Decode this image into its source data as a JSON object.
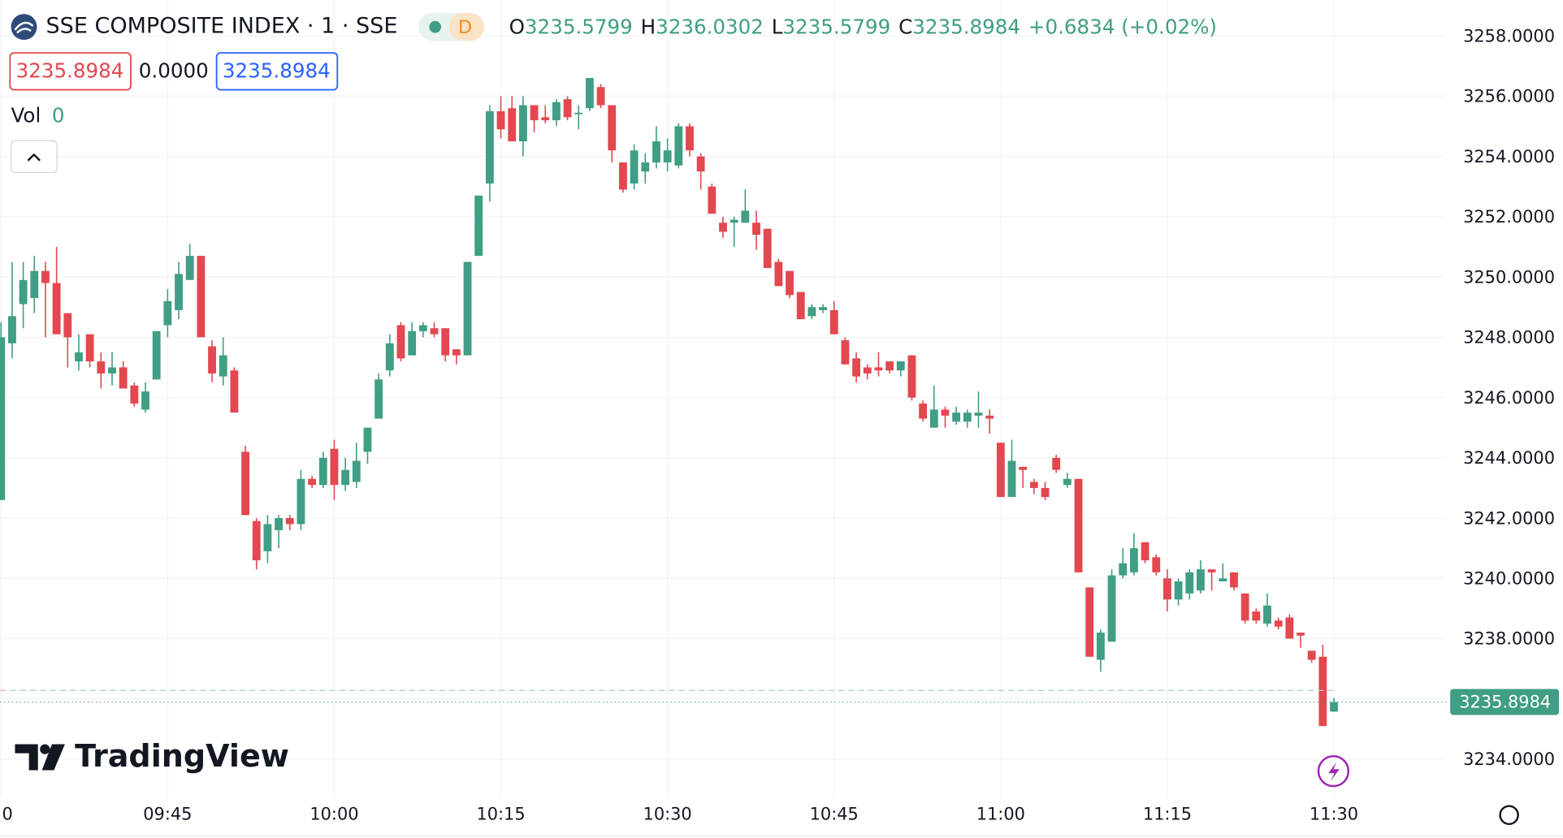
{
  "header": {
    "symbol": "SSE COMPOSITE INDEX · 1 · SSE",
    "badge": "D",
    "o_label": "O",
    "h_label": "H",
    "l_label": "L",
    "c_label": "C",
    "change": "+0.6834 (+0.02%)",
    "bid": "3235.8984",
    "spread": "0.0000",
    "ask": "3235.8984",
    "vol_label": "Vol",
    "vol_value": "0"
  },
  "logo": "TradingView",
  "chart_data": {
    "type": "candlestick",
    "up_color": "#3f9e84",
    "down_color": "#e3474f",
    "grid": true,
    "open": [
      3242.6,
      3247.8,
      3249.1,
      3249.3,
      3250.2,
      3249.8,
      3248.8,
      3247.2,
      3248.1,
      3247.2,
      3246.8,
      3247.0,
      3246.4,
      3245.6,
      3246.6,
      3248.4,
      3248.9,
      3249.9,
      3250.7,
      3247.7,
      3246.7,
      3246.9,
      3244.2,
      3241.9,
      3240.9,
      3241.6,
      3242.0,
      3241.8,
      3243.3,
      3243.1,
      3244.3,
      3243.1,
      3243.2,
      3244.2,
      3245.3,
      3246.9,
      3248.4,
      3247.4,
      3248.2,
      3248.3,
      3248.3,
      3247.6,
      3247.4,
      3250.7,
      3253.1,
      3255.5,
      3255.6,
      3254.5,
      3255.7,
      3255.3,
      3255.2,
      3255.9,
      3255.4,
      3255.6,
      3256.3,
      3255.7,
      3253.8,
      3253.1,
      3253.5,
      3253.8,
      3253.8,
      3253.7,
      3255.0,
      3254.0,
      3253.0,
      3251.8,
      3251.8,
      3251.8,
      3251.8,
      3251.6,
      3250.5,
      3250.2,
      3249.5,
      3248.7,
      3248.9,
      3248.9,
      3247.9,
      3247.3,
      3247.0,
      3247.0,
      3247.2,
      3246.9,
      3247.4,
      3245.8,
      3245.0,
      3245.6,
      3245.2,
      3245.2,
      3245.4,
      3245.4,
      3244.5,
      3242.7,
      3243.7,
      3243.2,
      3243.0,
      3244.0,
      3243.1,
      3243.3,
      3239.7,
      3237.3,
      3237.9,
      3240.1,
      3240.2,
      3241.2,
      3240.7,
      3240.0,
      3239.3,
      3239.5,
      3239.6,
      3240.3,
      3239.9,
      3240.2,
      3239.5,
      3238.9,
      3238.5,
      3238.6,
      3238.7,
      3238.2,
      3237.6,
      3237.4,
      3235.5799
    ],
    "high": [
      3248.5,
      3250.5,
      3250.5,
      3250.7,
      3250.5,
      3251.0,
      3248.8,
      3248.1,
      3248.1,
      3247.5,
      3247.5,
      3247.2,
      3246.5,
      3246.5,
      3248.2,
      3249.6,
      3250.5,
      3251.1,
      3250.7,
      3247.9,
      3248.0,
      3247.0,
      3244.4,
      3242.0,
      3242.1,
      3242.1,
      3242.1,
      3243.6,
      3243.4,
      3244.2,
      3244.6,
      3244.0,
      3244.5,
      3245.0,
      3246.8,
      3248.1,
      3248.5,
      3248.5,
      3248.5,
      3248.5,
      3248.3,
      3247.6,
      3250.5,
      3252.7,
      3255.7,
      3256.0,
      3256.0,
      3256.0,
      3255.7,
      3255.7,
      3255.9,
      3256.0,
      3255.7,
      3256.6,
      3256.4,
      3255.7,
      3253.8,
      3254.4,
      3254.1,
      3255.0,
      3254.6,
      3255.1,
      3255.1,
      3254.1,
      3253.1,
      3252.0,
      3252.0,
      3252.9,
      3252.2,
      3251.6,
      3250.6,
      3250.2,
      3249.5,
      3249.1,
      3249.1,
      3249.2,
      3248.0,
      3247.5,
      3247.1,
      3247.5,
      3247.2,
      3247.2,
      3247.4,
      3245.9,
      3246.4,
      3245.7,
      3245.7,
      3245.6,
      3246.2,
      3245.6,
      3244.5,
      3244.6,
      3243.7,
      3243.3,
      3243.2,
      3244.1,
      3243.5,
      3243.3,
      3239.7,
      3238.3,
      3240.3,
      3241.0,
      3241.5,
      3241.2,
      3240.8,
      3240.3,
      3240.0,
      3240.3,
      3240.6,
      3240.3,
      3240.5,
      3240.2,
      3239.5,
      3239.0,
      3239.5,
      3238.7,
      3238.8,
      3238.2,
      3237.6,
      3237.8,
      3236.0302
    ],
    "low": [
      3242.6,
      3247.3,
      3248.3,
      3248.8,
      3248.0,
      3248.1,
      3247.0,
      3246.9,
      3247.0,
      3246.3,
      3246.4,
      3246.3,
      3245.7,
      3245.5,
      3246.6,
      3248.0,
      3248.6,
      3249.9,
      3248.0,
      3246.5,
      3246.4,
      3245.5,
      3242.1,
      3240.3,
      3240.5,
      3241.0,
      3241.6,
      3241.6,
      3243.0,
      3243.0,
      3242.6,
      3242.9,
      3243.0,
      3243.8,
      3245.3,
      3246.7,
      3247.2,
      3247.4,
      3248.0,
      3248.0,
      3247.2,
      3247.1,
      3247.4,
      3250.7,
      3252.5,
      3254.6,
      3254.5,
      3254.0,
      3254.8,
      3255.1,
      3255.0,
      3255.2,
      3254.9,
      3255.5,
      3255.6,
      3253.8,
      3252.8,
      3252.9,
      3253.1,
      3253.6,
      3253.5,
      3253.6,
      3254.0,
      3252.9,
      3252.1,
      3251.3,
      3251.0,
      3251.8,
      3250.9,
      3250.3,
      3249.7,
      3249.3,
      3248.6,
      3248.6,
      3248.8,
      3248.1,
      3247.1,
      3246.5,
      3246.6,
      3246.7,
      3246.8,
      3246.7,
      3245.9,
      3245.2,
      3245.0,
      3245.0,
      3245.1,
      3245.0,
      3245.0,
      3244.8,
      3242.7,
      3242.7,
      3243.0,
      3242.8,
      3242.6,
      3243.5,
      3243.0,
      3240.2,
      3237.4,
      3236.9,
      3237.9,
      3240.0,
      3240.1,
      3240.5,
      3240.1,
      3238.9,
      3239.1,
      3239.3,
      3239.5,
      3239.6,
      3239.9,
      3239.6,
      3238.5,
      3238.5,
      3238.4,
      3238.3,
      3238.0,
      3237.7,
      3237.2,
      3235.1,
      3235.5799
    ],
    "close": [
      3248.0,
      3248.7,
      3249.9,
      3250.2,
      3249.8,
      3248.1,
      3248.0,
      3247.5,
      3247.2,
      3246.8,
      3247.0,
      3246.3,
      3245.8,
      3246.2,
      3248.2,
      3249.2,
      3250.1,
      3250.7,
      3248.0,
      3246.8,
      3247.4,
      3245.5,
      3242.1,
      3240.6,
      3241.8,
      3242.0,
      3241.8,
      3243.3,
      3243.1,
      3244.0,
      3243.1,
      3243.6,
      3243.9,
      3245.0,
      3246.6,
      3247.8,
      3247.3,
      3248.2,
      3248.4,
      3248.1,
      3247.4,
      3247.4,
      3250.5,
      3252.7,
      3255.5,
      3254.9,
      3254.5,
      3255.7,
      3255.2,
      3255.2,
      3255.8,
      3255.3,
      3255.45,
      3256.6,
      3255.7,
      3254.2,
      3252.9,
      3254.2,
      3253.8,
      3254.5,
      3254.2,
      3255.0,
      3254.2,
      3253.5,
      3252.1,
      3251.5,
      3251.9,
      3252.2,
      3251.4,
      3250.3,
      3249.7,
      3249.4,
      3248.6,
      3249.0,
      3249.0,
      3248.1,
      3247.1,
      3246.7,
      3246.8,
      3246.9,
      3246.9,
      3247.2,
      3246.0,
      3245.3,
      3245.6,
      3245.4,
      3245.5,
      3245.5,
      3245.5,
      3245.3,
      3242.7,
      3243.9,
      3243.6,
      3243.0,
      3242.7,
      3243.6,
      3243.3,
      3240.2,
      3237.4,
      3238.2,
      3240.1,
      3240.5,
      3241.0,
      3240.6,
      3240.2,
      3239.3,
      3239.9,
      3240.2,
      3240.3,
      3240.2,
      3240.0,
      3239.7,
      3238.6,
      3238.6,
      3239.1,
      3238.4,
      3238.0,
      3238.1,
      3237.3,
      3235.1,
      3235.8984
    ],
    "xlim": [
      -0.09,
      129.3
    ],
    "ylim": [
      3232.71,
      3259.19
    ],
    "xticks": [
      {
        "value": 0,
        "label": "0"
      },
      {
        "value": 15,
        "label": "09:45"
      },
      {
        "value": 30,
        "label": "10:00"
      },
      {
        "value": 45,
        "label": "10:15"
      },
      {
        "value": 60,
        "label": "10:30"
      },
      {
        "value": 75,
        "label": "10:45"
      },
      {
        "value": 90,
        "label": "11:00"
      },
      {
        "value": 105,
        "label": "11:15"
      },
      {
        "value": 120,
        "label": "11:30"
      }
    ],
    "yticks": [
      {
        "value": 3234,
        "label": "3234.0000"
      },
      {
        "value": 3236,
        "label": "3236.0000"
      },
      {
        "value": 3238,
        "label": "3238.0000"
      },
      {
        "value": 3240,
        "label": "3240.0000"
      },
      {
        "value": 3242,
        "label": "3242.0000"
      },
      {
        "value": 3244,
        "label": "3244.0000"
      },
      {
        "value": 3246,
        "label": "3246.0000"
      },
      {
        "value": 3248,
        "label": "3248.0000"
      },
      {
        "value": 3250,
        "label": "3250.0000"
      },
      {
        "value": 3252,
        "label": "3252.0000"
      },
      {
        "value": 3254,
        "label": "3254.0000"
      },
      {
        "value": 3256,
        "label": "3256.0000"
      },
      {
        "value": 3258,
        "label": "3258.0000"
      }
    ],
    "dashed_line": 3236.28
  }
}
